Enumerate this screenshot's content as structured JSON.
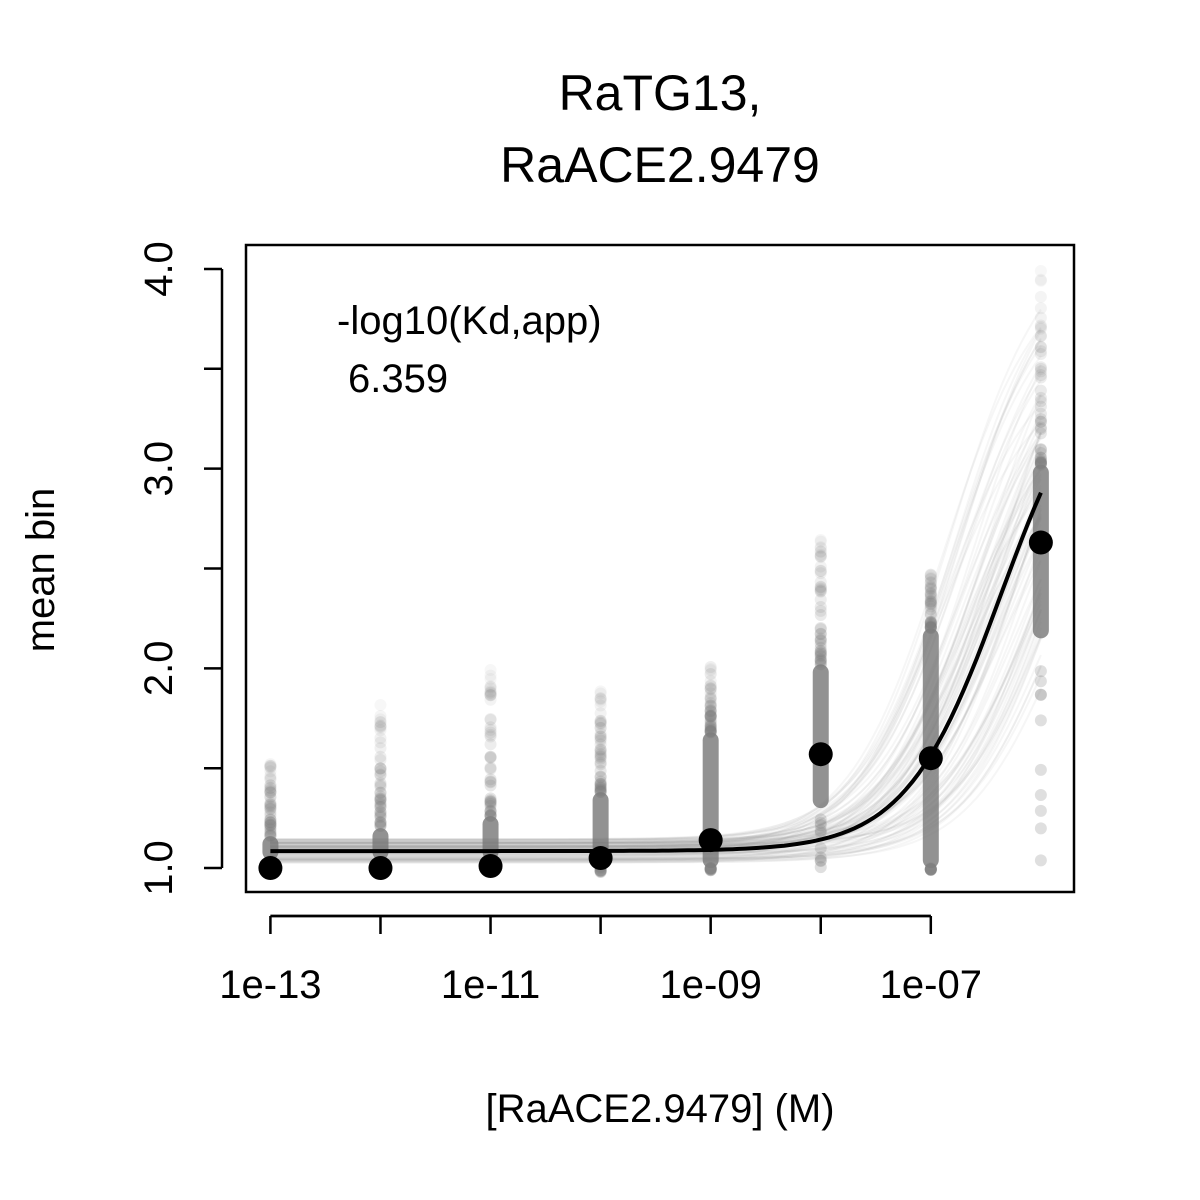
{
  "chart_data": {
    "type": "scatter",
    "title_lines": [
      "RaTG13,",
      "RaACE2.9479"
    ],
    "xlabel": "[RaACE2.9479] (M)",
    "ylabel": "mean bin",
    "x_scale": "log10",
    "xlim": [
      6e-14,
      2e-06
    ],
    "ylim": [
      0.88,
      4.12
    ],
    "x_ticks": [
      1e-13,
      1e-11,
      1e-09,
      1e-07
    ],
    "x_tick_labels": [
      "1e-13",
      "1e-11",
      "1e-9",
      "1e-7"
    ],
    "x_tick_labels_shown": [
      "1e-13",
      "1e-11",
      "1e-09",
      "1e-07"
    ],
    "y_ticks": [
      1.0,
      1.5,
      2.0,
      2.5,
      3.0,
      3.5,
      4.0
    ],
    "y_tick_labels": [
      "1.0",
      "",
      "2.0",
      "",
      "3.0",
      "",
      "4.0"
    ],
    "annotation": {
      "label": "-log10(Kd,app)",
      "value": "6.359"
    },
    "grid": false,
    "points": {
      "name": "mean",
      "x": [
        1e-13,
        1e-12,
        1e-11,
        1e-10,
        1e-09,
        1e-08,
        1e-07,
        1e-06
      ],
      "y": [
        1.0,
        1.0,
        1.01,
        1.05,
        1.14,
        1.57,
        1.55,
        2.63
      ]
    },
    "fit": {
      "neg_log10_kd": 6.359,
      "baseline": 1.085,
      "amplitude": 2.58,
      "hill": 1.0
    },
    "background_spread": {
      "y_min": [
        0.99,
        0.99,
        0.99,
        0.98,
        0.98,
        1.0,
        0.99,
        1.0
      ],
      "y_max": [
        1.56,
        1.82,
        2.0,
        1.92,
        2.01,
        2.69,
        2.49,
        4.0
      ],
      "dense_low": [
        1.04,
        1.04,
        1.04,
        1.02,
        1.0,
        1.3,
        1.0,
        2.15
      ],
      "dense_high": [
        1.16,
        1.2,
        1.26,
        1.38,
        1.68,
        2.02,
        2.2,
        3.02
      ]
    },
    "colors": {
      "points": "#000000",
      "fit_line": "#000000",
      "background": "#7f7f7f"
    }
  }
}
